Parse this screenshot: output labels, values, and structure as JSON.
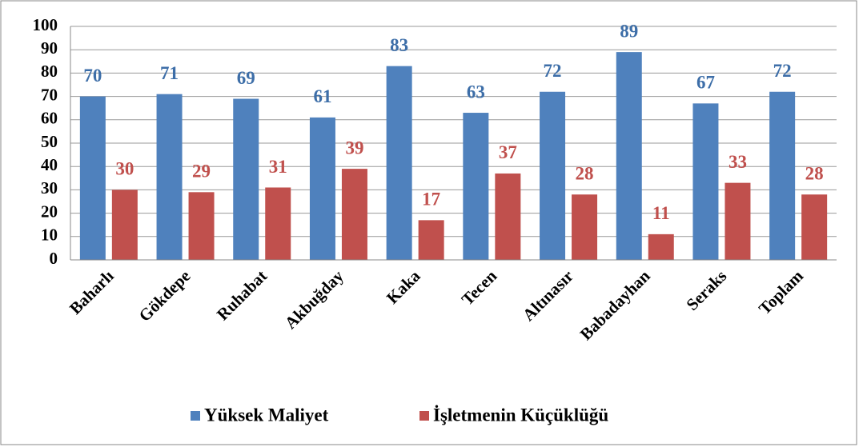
{
  "chart_data": {
    "type": "bar",
    "categories": [
      "Baharlı",
      "Gökdepe",
      "Ruhabat",
      "Akbuğday",
      "Kaka",
      "Tecen",
      "Altınasır",
      "Babadayhan",
      "Seraks",
      "Toplam"
    ],
    "series": [
      {
        "name": "Yüksek Maliyet",
        "color": "#4f81bd",
        "label_color": "#3d6ea8",
        "values": [
          70,
          71,
          69,
          61,
          83,
          63,
          72,
          89,
          67,
          72
        ]
      },
      {
        "name": "İşletmenin Küçüklüğü",
        "color": "#c0504d",
        "label_color": "#c0504d",
        "values": [
          30,
          29,
          31,
          39,
          17,
          37,
          28,
          11,
          33,
          28
        ]
      }
    ],
    "ylim": [
      0,
      100
    ],
    "yticks": [
      0,
      10,
      20,
      30,
      40,
      50,
      60,
      70,
      80,
      90,
      100
    ],
    "grid": true,
    "legend": "bottom"
  }
}
